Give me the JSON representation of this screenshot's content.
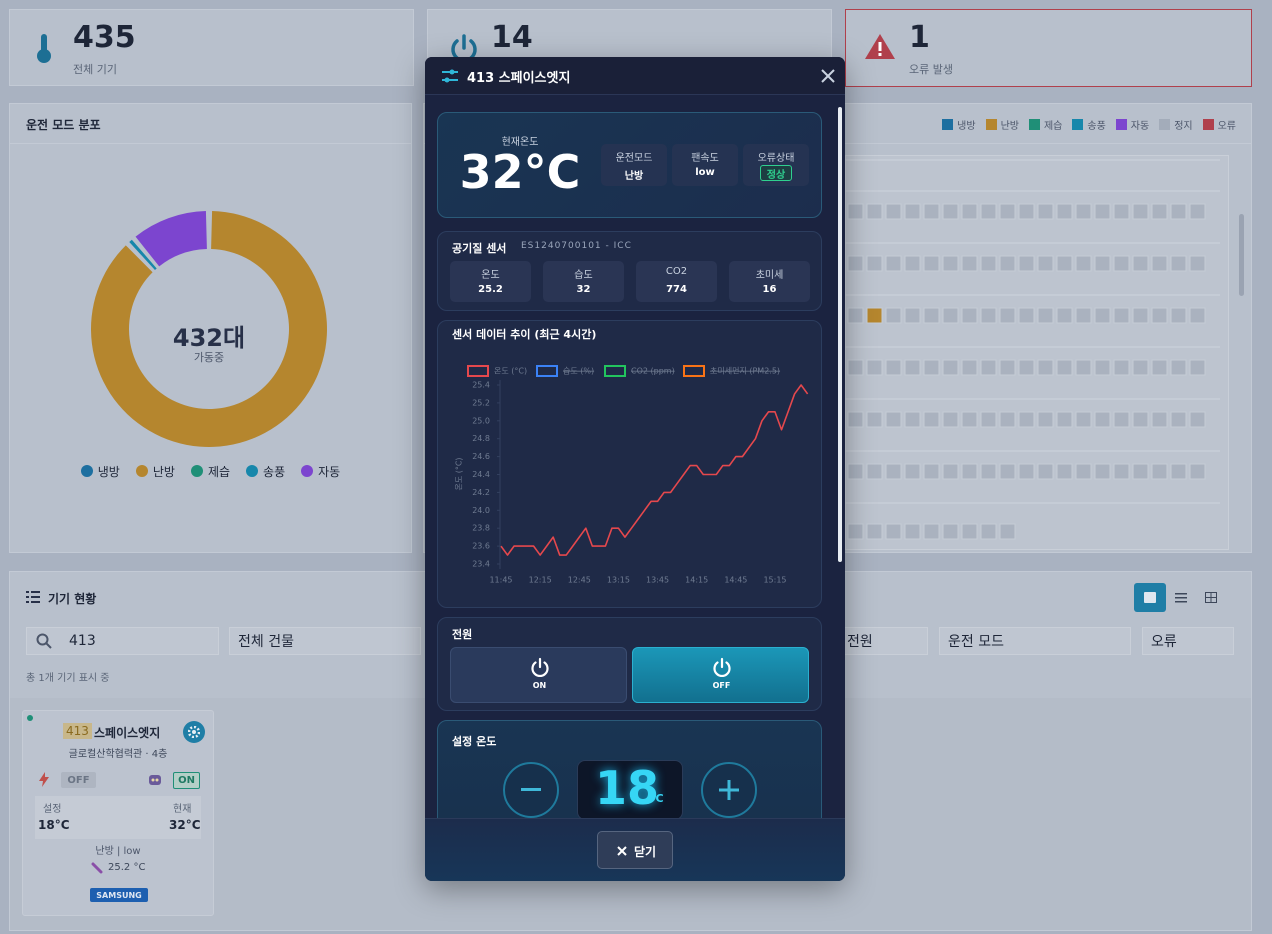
{
  "stats": [
    {
      "value": "435",
      "label": "전체 기기"
    },
    {
      "value": "14"
    },
    {
      "value": "1",
      "label": "오류 발생"
    }
  ],
  "chart_data": [
    {
      "type": "pie",
      "title": "운전 모드 분포",
      "center_text": "432대",
      "center_subtext": "가동중",
      "categories": [
        "냉방",
        "난방",
        "제습",
        "송풍",
        "자동"
      ],
      "values": [
        0,
        380,
        0,
        4,
        48
      ],
      "colors": [
        "#1d6fa0",
        "#b5862e",
        "#1f8f77",
        "#1787ab",
        "#7c45cf"
      ],
      "legend": "bottom"
    },
    {
      "type": "line",
      "title": "센서 데이터 추이 (최근 4시간)",
      "y_label": "온도 (°C)",
      "categories": [
        "11:45",
        null,
        null,
        null,
        null,
        null,
        "12:15",
        null,
        null,
        null,
        null,
        null,
        "12:45",
        null,
        null,
        null,
        null,
        null,
        "13:15",
        null,
        null,
        null,
        null,
        null,
        "13:45",
        null,
        null,
        null,
        null,
        null,
        "14:15",
        null,
        null,
        null,
        null,
        null,
        "14:45",
        null,
        null,
        null,
        null,
        null,
        "15:15",
        null,
        null,
        null,
        null,
        null
      ],
      "series": [
        {
          "name": "온도 (°C)",
          "color": "#e5484d",
          "values": [
            23.6,
            23.5,
            23.6,
            23.6,
            23.6,
            23.6,
            23.5,
            23.6,
            23.7,
            23.5,
            23.5,
            23.6,
            23.7,
            23.8,
            23.6,
            23.6,
            23.6,
            23.8,
            23.8,
            23.7,
            23.8,
            23.9,
            24.0,
            24.1,
            24.1,
            24.2,
            24.2,
            24.3,
            24.4,
            24.5,
            24.5,
            24.4,
            24.4,
            24.4,
            24.5,
            24.5,
            24.6,
            24.6,
            24.7,
            24.8,
            25.0,
            25.1,
            25.1,
            24.9,
            25.1,
            25.3,
            25.4,
            25.3
          ]
        },
        {
          "name": "습도 (%)",
          "color": "#3b82f6",
          "hidden": true
        },
        {
          "name": "CO2 (ppm)",
          "color": "#22c55e",
          "hidden": true
        },
        {
          "name": "초미세먼지 (PM2.5)",
          "color": "#f97316",
          "hidden": true
        }
      ],
      "ylim": [
        23.4,
        25.4
      ],
      "yticks": [
        23.4,
        23.6,
        23.8,
        {
          "value": 24,
          "label": "24.0"
        },
        24.2,
        24.4,
        24.6,
        24.8,
        {
          "value": 25,
          "label": "25.0"
        },
        25.2,
        25.4
      ],
      "grid": false
    }
  ],
  "status_legend": [
    {
      "name": "냉방",
      "color": "#1d6fa0"
    },
    {
      "name": "난방",
      "color": "#b5862e"
    },
    {
      "name": "제습",
      "color": "#1f8f77"
    },
    {
      "name": "송풍",
      "color": "#1787ab"
    },
    {
      "name": "자동",
      "color": "#7c45cf"
    },
    {
      "name": "정지",
      "color": "#a3acba"
    },
    {
      "name": "오류",
      "color": "#b0404c"
    }
  ],
  "device_list": {
    "title": "기기 현황",
    "search": "413",
    "filters": [
      "전체 건물",
      "전원",
      "운전 모드",
      "오류"
    ],
    "count_text": "총 1개 기기 표시 중",
    "card": {
      "id": "413",
      "name": "스페이스엣지",
      "location": "글로컬산학협력관 · 4층",
      "power_off": "OFF",
      "power_on": "ON",
      "set_label": "설정",
      "current_label": "현재",
      "set_temp": "18°C",
      "current_temp": "32°C",
      "mode_fan": "난방 | low",
      "sensor_temp": "25.2 °C",
      "brand": "SAMSUNG"
    }
  },
  "modal": {
    "title": "413 스페이스엣지",
    "current_label": "현재온도",
    "current_temp": "32°C",
    "info": [
      {
        "label": "운전모드",
        "value": "난방"
      },
      {
        "label": "팬속도",
        "value": "low"
      },
      {
        "label": "오류상태",
        "value": "정상"
      }
    ],
    "air": {
      "title": "공기질 센서",
      "sensor_id": "ES1240700101 - ICC",
      "items": [
        {
          "label": "온도",
          "value": "25.2"
        },
        {
          "label": "습도",
          "value": "32"
        },
        {
          "label": "CO2",
          "value": "774"
        },
        {
          "label": "초미세",
          "value": "16"
        }
      ]
    },
    "power": {
      "title": "전원",
      "on": "ON",
      "off": "OFF"
    },
    "set_temp": {
      "title": "설정 온도",
      "value": "18",
      "unit": "°C"
    },
    "close": "닫기"
  }
}
